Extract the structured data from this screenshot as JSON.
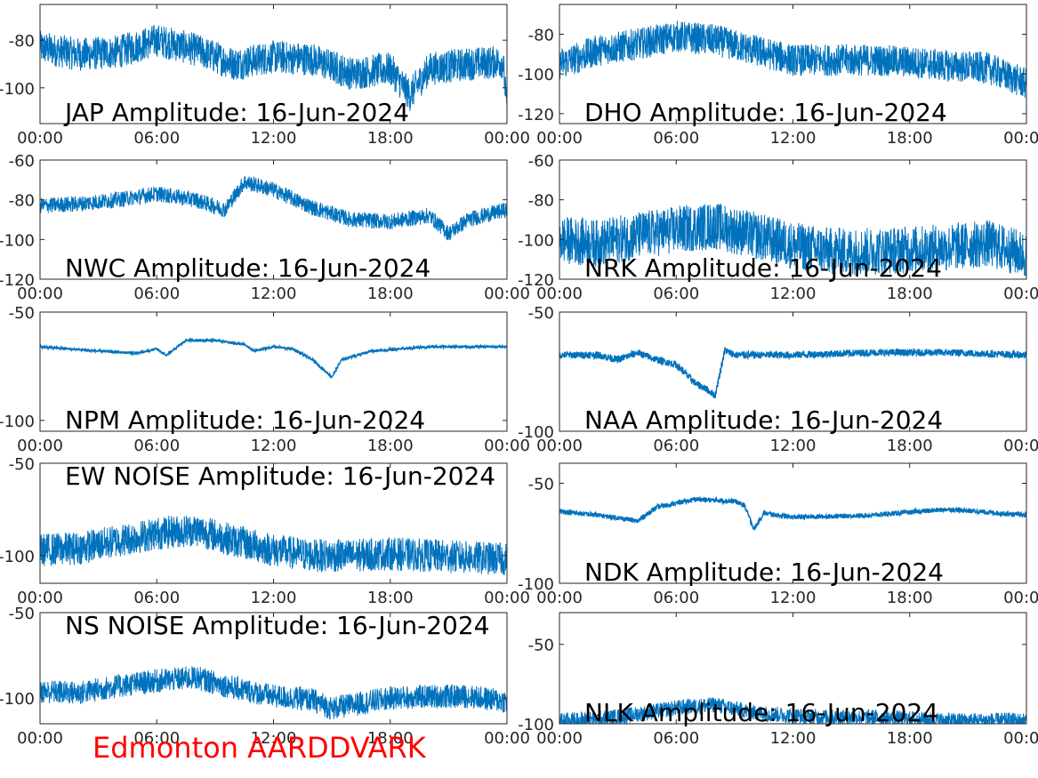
{
  "figure": {
    "footer": "Edmonton AARDDVARK",
    "footer_color": "#ff0000",
    "line_color": "#0072bd"
  },
  "chart_data": [
    {
      "type": "line",
      "title": "JAP Amplitude: 16-Jun-2024",
      "xticks": [
        "00:00",
        "06:00",
        "12:00",
        "18:00",
        "00:00"
      ],
      "xlim_hours": [
        0,
        24
      ],
      "ylim": [
        -115,
        -65
      ],
      "yticks": [
        -80,
        -100
      ],
      "yticklabels": [
        "-80",
        "-100"
      ],
      "x_hours": [
        0,
        2,
        4,
        6,
        8,
        10,
        12,
        14,
        16,
        18,
        19,
        20,
        22,
        23.8,
        24
      ],
      "values": [
        -83,
        -86,
        -85,
        -80,
        -84,
        -90,
        -87,
        -88,
        -94,
        -92,
        -103,
        -92,
        -90,
        -89,
        -110
      ],
      "noise": 7
    },
    {
      "type": "line",
      "title": "DHO Amplitude: 16-Jun-2024",
      "xticks": [
        "00:00",
        "06:00",
        "12:00",
        "18:00",
        "00:00"
      ],
      "xlim_hours": [
        0,
        24
      ],
      "ylim": [
        -125,
        -65
      ],
      "yticks": [
        -80,
        -100,
        -120
      ],
      "yticklabels": [
        "-80",
        "-100",
        "-120"
      ],
      "x_hours": [
        0,
        2,
        4,
        6,
        8,
        10,
        12,
        14,
        16,
        18,
        20,
        22,
        24
      ],
      "values": [
        -95,
        -88,
        -85,
        -81,
        -83,
        -88,
        -93,
        -93,
        -93,
        -94,
        -96,
        -97,
        -105
      ],
      "noise": 8
    },
    {
      "type": "line",
      "title": "NWC Amplitude: 16-Jun-2024",
      "xticks": [
        "00:00",
        "06:00",
        "12:00",
        "18:00",
        "00:00"
      ],
      "xlim_hours": [
        0,
        24
      ],
      "ylim": [
        -120,
        -60
      ],
      "yticks": [
        -60,
        -80,
        -100,
        -120
      ],
      "yticklabels": [
        "-60",
        "-80",
        "-100",
        "-120"
      ],
      "x_hours": [
        0,
        2,
        4,
        6,
        8,
        9.5,
        10.5,
        12,
        14,
        16,
        18,
        20,
        21,
        22,
        24
      ],
      "values": [
        -83,
        -82,
        -80,
        -77,
        -80,
        -85,
        -71,
        -75,
        -84,
        -90,
        -91,
        -88,
        -97,
        -90,
        -85
      ],
      "noise": 4
    },
    {
      "type": "line",
      "title": "NRK Amplitude: 16-Jun-2024",
      "xticks": [
        "00:00",
        "06:00",
        "12:00",
        "18:00",
        "00:00"
      ],
      "xlim_hours": [
        0,
        24
      ],
      "ylim": [
        -120,
        -60
      ],
      "yticks": [
        -60,
        -80,
        -100,
        -120
      ],
      "yticklabels": [
        "-60",
        "-80",
        "-100",
        "-120"
      ],
      "x_hours": [
        0,
        2,
        4,
        6,
        8,
        10,
        12,
        14,
        16,
        18,
        20,
        22,
        24
      ],
      "values": [
        -100,
        -102,
        -98,
        -95,
        -93,
        -98,
        -103,
        -106,
        -106,
        -105,
        -104,
        -102,
        -108
      ],
      "noise": 12
    },
    {
      "type": "line",
      "title": "NPM Amplitude: 16-Jun-2024",
      "xticks": [
        "00:00",
        "06:00",
        "12:00",
        "18:00",
        "00:00"
      ],
      "xlim_hours": [
        0,
        24
      ],
      "ylim": [
        -105,
        -50
      ],
      "yticks": [
        -50,
        -100
      ],
      "yticklabels": [
        "-50",
        "-100"
      ],
      "x_hours": [
        0,
        3,
        5,
        6,
        6.5,
        7.5,
        9,
        10.5,
        11,
        12,
        13,
        14,
        15,
        15.5,
        17,
        20,
        24
      ],
      "values": [
        -66,
        -68,
        -69,
        -67,
        -70,
        -63,
        -63,
        -65,
        -68,
        -66,
        -67,
        -72,
        -80,
        -72,
        -68,
        -66,
        -66
      ],
      "noise": 0.6
    },
    {
      "type": "line",
      "title": "NAA Amplitude: 16-Jun-2024",
      "xticks": [
        "00:00",
        "06:00",
        "12:00",
        "18:00",
        "00:00"
      ],
      "xlim_hours": [
        0,
        24
      ],
      "ylim": [
        -100,
        -50
      ],
      "yticks": [
        -50,
        -100
      ],
      "yticklabels": [
        "-50",
        "-100"
      ],
      "x_hours": [
        0,
        2,
        3,
        4,
        5,
        6,
        7,
        7.5,
        8,
        8.5,
        9,
        10,
        12,
        16,
        20,
        24
      ],
      "values": [
        -68,
        -68,
        -70,
        -67,
        -70,
        -72,
        -80,
        -82,
        -85,
        -66,
        -68,
        -68,
        -68,
        -67,
        -67,
        -68
      ],
      "noise": 1.5
    },
    {
      "type": "line",
      "title": "EW NOISE Amplitude: 16-Jun-2024",
      "xticks": [
        "00:00",
        "06:00",
        "12:00",
        "18:00",
        "00:00"
      ],
      "xlim_hours": [
        0,
        24
      ],
      "ylim": [
        -115,
        -50
      ],
      "yticks": [
        -50,
        -100
      ],
      "yticklabels": [
        "-50",
        "-100"
      ],
      "x_hours": [
        0,
        2,
        4,
        6,
        8,
        10,
        12,
        14,
        16,
        18,
        20,
        22,
        24
      ],
      "values": [
        -97,
        -96,
        -92,
        -88,
        -86,
        -92,
        -97,
        -100,
        -100,
        -99,
        -100,
        -101,
        -102
      ],
      "noise": 9
    },
    {
      "type": "line",
      "title": "NDK Amplitude: 16-Jun-2024",
      "xticks": [
        "00:00",
        "06:00",
        "12:00",
        "18:00",
        "00:00"
      ],
      "xlim_hours": [
        0,
        24
      ],
      "ylim": [
        -100,
        -40
      ],
      "yticks": [
        -50,
        -100
      ],
      "yticklabels": [
        "-50",
        "-100"
      ],
      "x_hours": [
        0,
        2,
        3.5,
        4,
        5,
        7,
        9,
        9.5,
        10,
        10.5,
        12,
        16,
        20,
        24
      ],
      "values": [
        -64,
        -66,
        -68,
        -69,
        -62,
        -58,
        -59,
        -61,
        -73,
        -65,
        -67,
        -66,
        -63,
        -66
      ],
      "noise": 1.2
    },
    {
      "type": "line",
      "title": "NS NOISE Amplitude: 16-Jun-2024",
      "xticks": [
        "00:00",
        "06:00",
        "12:00",
        "18:00",
        "00:00"
      ],
      "xlim_hours": [
        0,
        24
      ],
      "ylim": [
        -115,
        -50
      ],
      "yticks": [
        -50,
        -100
      ],
      "yticklabels": [
        "-50",
        "-100"
      ],
      "x_hours": [
        0,
        2,
        4,
        6,
        8,
        10,
        12,
        14,
        15,
        16,
        18,
        20,
        22,
        24
      ],
      "values": [
        -96,
        -97,
        -93,
        -90,
        -88,
        -94,
        -99,
        -101,
        -106,
        -104,
        -100,
        -99,
        -99,
        -102
      ],
      "noise": 7
    },
    {
      "type": "line",
      "title": "NLK Amplitude: 16-Jun-2024",
      "xticks": [
        "00:00",
        "06:00",
        "12:00",
        "18:00",
        "00:00"
      ],
      "xlim_hours": [
        0,
        24
      ],
      "ylim": [
        -100,
        -30
      ],
      "yticks": [
        -50,
        -100
      ],
      "yticklabels": [
        "-50",
        "-100"
      ],
      "x_hours": [
        0,
        2,
        4,
        6,
        8,
        10,
        12,
        14,
        16,
        18,
        20,
        24
      ],
      "values": [
        -98,
        -97,
        -94,
        -90,
        -88,
        -93,
        -95,
        -96,
        -96,
        -97,
        -98,
        -98
      ],
      "noise": 5
    }
  ]
}
